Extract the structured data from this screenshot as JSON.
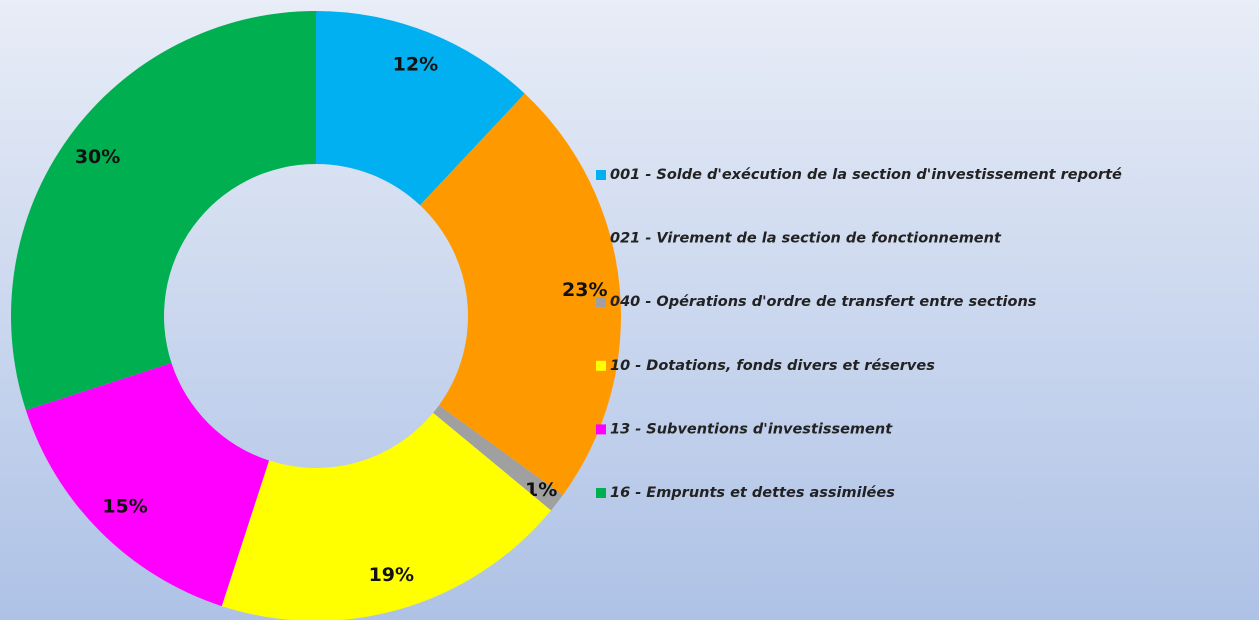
{
  "chart_data": {
    "type": "donut",
    "categories": [
      "001 - Solde d'exécution de la section d'investissement reporté",
      "021 - Virement de la section de fonctionnement",
      "040 - Opérations d'ordre de transfert entre sections",
      "10 - Dotations, fonds divers et réserves",
      "13 - Subventions d'investissement",
      "16 - Emprunts et dettes assimilées"
    ],
    "values": [
      12,
      23,
      1,
      19,
      15,
      30
    ],
    "value_labels": [
      "12%",
      "23%",
      "1%",
      "19%",
      "15%",
      "30%"
    ],
    "colors": [
      "#00b0f0",
      "#ff9900",
      "#a0a0a0",
      "#ffff00",
      "#ff00ff",
      "#00b050"
    ],
    "legend": "right"
  }
}
